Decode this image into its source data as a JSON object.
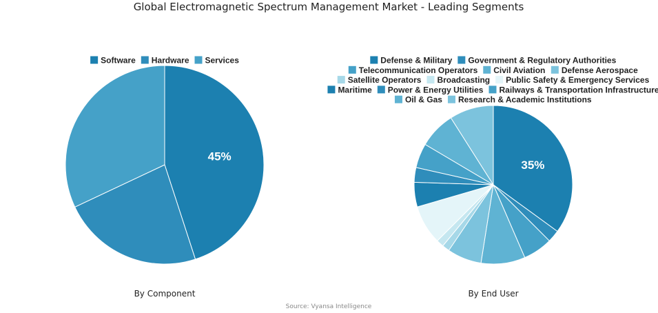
{
  "title": "Global Electromagnetic Spectrum Management Market - Leading Segments",
  "source": "Source: Vyansa Intelligence",
  "colors": {
    "c1": "#1c80b0",
    "c2": "#2f8dbb",
    "c3": "#45a1c8",
    "c4": "#5fb3d3",
    "c5": "#7cc3dd",
    "c6": "#a6d8e8",
    "c7": "#e4f5f9"
  },
  "chart_data": [
    {
      "type": "pie",
      "caption": "By Component",
      "labels": [
        "Software",
        "Hardware",
        "Services"
      ],
      "values": [
        45,
        23,
        32
      ],
      "colors": [
        "#1c80b0",
        "#2f8dbb",
        "#45a1c8"
      ],
      "data_labels": [
        "45%",
        "",
        ""
      ],
      "legend_rows": [
        [
          "Software",
          "Hardware",
          "Services"
        ]
      ],
      "legend_position": "top"
    },
    {
      "type": "pie",
      "caption": "By End User",
      "labels": [
        "Defense & Military",
        "Government & Regulatory Authorities",
        "Telecommunication Operators",
        "Civil Aviation",
        "Defense Aerospace",
        "Satellite Operators",
        "Broadcasting",
        "Public Safety & Emergency Services",
        "Maritime",
        "Power & Energy Utilities",
        "Railways & Transportation Infrastructure",
        "Oil & Gas",
        "Research & Academic Institutions"
      ],
      "values": [
        35,
        2.5,
        6,
        9,
        7,
        1.5,
        1.5,
        8,
        5,
        3,
        5,
        7.5,
        9
      ],
      "colors": [
        "#1c80b0",
        "#2f8dbb",
        "#45a1c8",
        "#5fb3d3",
        "#7cc3dd",
        "#a6d8e8",
        "#c5e7f0",
        "#e4f5f9",
        "#1c80b0",
        "#2f8dbb",
        "#45a1c8",
        "#5fb3d3",
        "#7cc3dd"
      ],
      "data_labels": [
        "35%",
        "",
        "",
        "",
        "",
        "",
        "",
        "",
        "",
        "",
        "",
        "",
        ""
      ],
      "legend_rows": [
        [
          "Defense & Military",
          "Government & Regulatory Authorities"
        ],
        [
          "Telecommunication Operators",
          "Civil Aviation",
          "Defense Aerospace"
        ],
        [
          "Satellite Operators",
          "Broadcasting",
          "Public Safety & Emergency Services"
        ],
        [
          "Maritime",
          "Power & Energy Utilities",
          "Railways & Transportation Infrastructure"
        ],
        [
          "Oil & Gas",
          "Research & Academic Institutions"
        ]
      ],
      "legend_position": "top"
    }
  ]
}
